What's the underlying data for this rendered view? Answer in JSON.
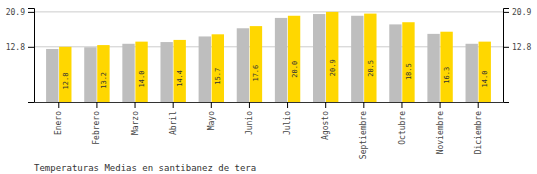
{
  "chart_data": {
    "type": "bar",
    "title": "Temperaturas Medias en santibanez de tera",
    "categories": [
      "Enero",
      "Febrero",
      "Marzo",
      "Abril",
      "Mayo",
      "Junio",
      "Julio",
      "Agosto",
      "Septiembre",
      "Octubre",
      "Noviembre",
      "Diciembre"
    ],
    "series": [
      {
        "color": "#BEBEBE",
        "values": [
          12.3,
          12.7,
          13.5,
          13.9,
          15.2,
          17.1,
          19.5,
          20.4,
          20.0,
          18.0,
          15.8,
          13.5
        ]
      },
      {
        "color": "#FFD700",
        "values": [
          12.8,
          13.2,
          14.0,
          14.4,
          15.7,
          17.6,
          20.0,
          20.9,
          20.5,
          18.5,
          16.3,
          14.0
        ],
        "data_labels": true,
        "value_labels": [
          "12.8",
          "13.2",
          "14.0",
          "14.4",
          "15.7",
          "17.6",
          "20.0",
          "20.9",
          "20.5",
          "18.5",
          "16.3",
          "14.0"
        ]
      }
    ],
    "ylim": [
      0,
      21.8
    ],
    "yticks": [
      12.8,
      20.9
    ],
    "grid": true
  }
}
